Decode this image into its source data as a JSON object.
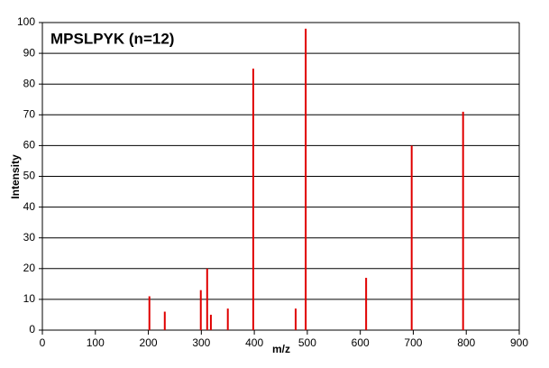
{
  "chart_data": {
    "type": "stem",
    "title": "MPSLPYK (n=12)",
    "x_label": "m/z",
    "y_label": "Intensity",
    "x": [
      202,
      231,
      299,
      311,
      318,
      350,
      398,
      478,
      497,
      611,
      697,
      794
    ],
    "values": [
      11,
      6,
      13,
      20,
      5,
      7,
      85,
      7,
      98,
      17,
      60,
      71
    ],
    "color": "#e00000",
    "xlim": [
      0,
      900
    ],
    "xticks": [
      0,
      100,
      200,
      300,
      400,
      500,
      600,
      700,
      800,
      900
    ],
    "ylim": [
      0,
      100
    ],
    "yticks": [
      0,
      10,
      20,
      30,
      40,
      50,
      60,
      70,
      80,
      90,
      100
    ],
    "grid": true
  }
}
